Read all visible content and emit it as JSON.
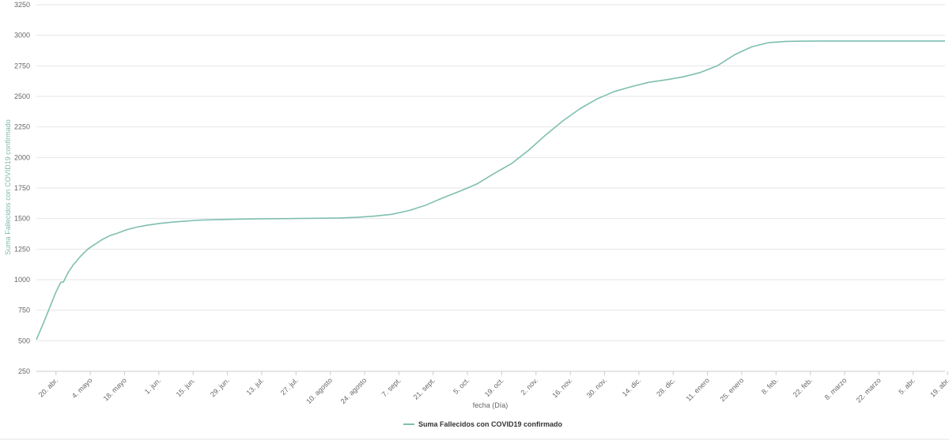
{
  "chart_data": {
    "type": "line",
    "xlabel": "fecha (Día)",
    "ylabel": "Suma Fallecidos con COVID19 confirmado",
    "ylim": [
      250,
      3250
    ],
    "yticks": [
      250,
      500,
      750,
      1000,
      1250,
      1500,
      1750,
      2000,
      2250,
      2500,
      2750,
      3000,
      3250
    ],
    "x_tick_labels": [
      "20. abr.",
      "4. mayo",
      "18. mayo",
      "1. jun.",
      "15. jun.",
      "29. jun.",
      "13. jul.",
      "27. jul.",
      "10. agosto",
      "24. agosto",
      "7. sept.",
      "21. sept.",
      "5. oct.",
      "19. oct.",
      "2. nov.",
      "16. nov.",
      "30. nov.",
      "14. dic.",
      "28. dic.",
      "11. enero",
      "25. enero",
      "8. feb.",
      "22. feb.",
      "8. marzo",
      "22. marzo",
      "5. abr.",
      "19. abr."
    ],
    "x_range_days": [
      -8,
      363
    ],
    "grid": true,
    "legend_position": "bottom-center",
    "colors": {
      "series": "#7fbfb0",
      "grid": "#e6e6e6"
    },
    "series": [
      {
        "name": "Suma Fallecidos con COVID19 confirmado",
        "x_days": [
          -8,
          -5,
          -2,
          0,
          2,
          3,
          4,
          5,
          7,
          10,
          13,
          16,
          19,
          22,
          25,
          29,
          33,
          37,
          42,
          47,
          52,
          57,
          60,
          67,
          74,
          81,
          88,
          95,
          102,
          109,
          116,
          123,
          130,
          137,
          144,
          151,
          158,
          165,
          172,
          179,
          186,
          193,
          200,
          207,
          214,
          221,
          228,
          235,
          242,
          249,
          256,
          263,
          270,
          277,
          284,
          291,
          298,
          305,
          312,
          319,
          326,
          333,
          340,
          347,
          354,
          363
        ],
        "values": [
          510,
          650,
          800,
          900,
          980,
          980,
          1020,
          1060,
          1120,
          1190,
          1250,
          1290,
          1330,
          1360,
          1380,
          1410,
          1430,
          1445,
          1460,
          1470,
          1478,
          1485,
          1488,
          1492,
          1495,
          1497,
          1499,
          1500,
          1502,
          1503,
          1505,
          1510,
          1520,
          1535,
          1565,
          1610,
          1670,
          1725,
          1785,
          1870,
          1950,
          2060,
          2185,
          2300,
          2400,
          2480,
          2540,
          2580,
          2615,
          2635,
          2660,
          2695,
          2750,
          2840,
          2905,
          2940,
          2950,
          2952,
          2953,
          2953,
          2953,
          2953,
          2953,
          2953,
          2953,
          2953
        ]
      }
    ]
  }
}
